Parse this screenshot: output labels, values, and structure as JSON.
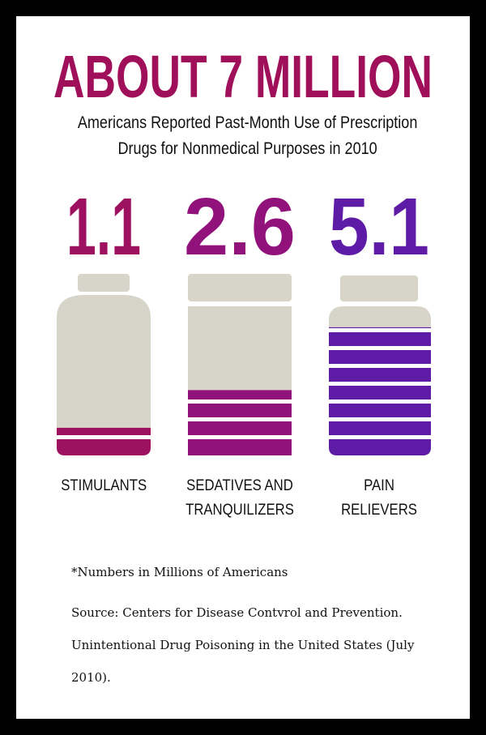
{
  "chart_data": {
    "type": "pictogram",
    "title": "ABOUT 7 MILLION",
    "subtitle": "Americans Reported Past-Month Use of Prescription Drugs for Nonmedical Purposes in 2010",
    "categories": [
      "STIMULANTS",
      "SEDATIVES AND TRANQUILIZERS",
      "PAIN RELIEVERS"
    ],
    "values": [
      1.1,
      2.6,
      5.1
    ],
    "colors": [
      "#9e1060",
      "#92127c",
      "#5e1ca6"
    ],
    "note": "*Numbers in Millions of Americans",
    "source": "Source: Centers for Disease Contvrol and Prevention. Unintentional Drug Poisoning in the United States (July 2010)."
  }
}
